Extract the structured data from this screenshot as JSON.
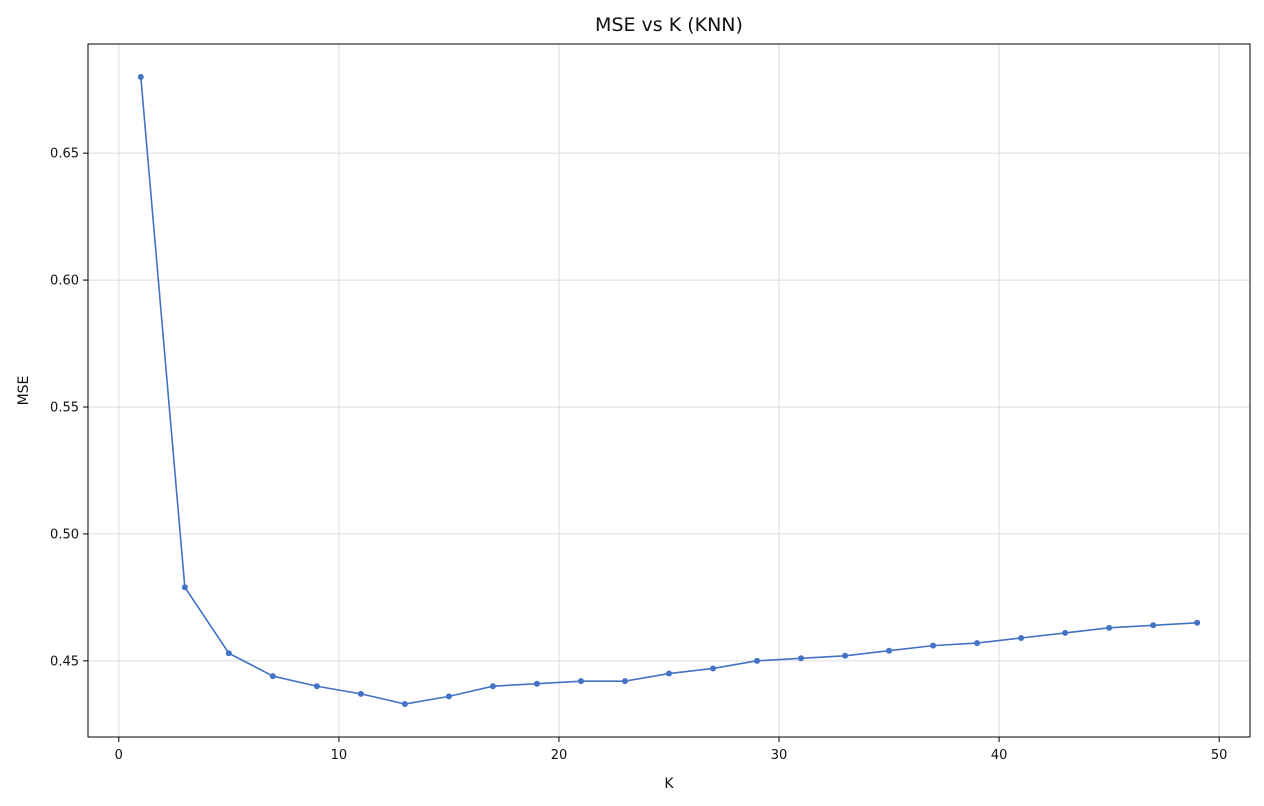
{
  "chart_data": {
    "type": "line",
    "title": "MSE vs K (KNN)",
    "xlabel": "K",
    "ylabel": "MSE",
    "xlim": [
      -1.4,
      51.4
    ],
    "ylim": [
      0.42,
      0.693
    ],
    "xticks": [
      0,
      10,
      20,
      30,
      40,
      50
    ],
    "yticks": [
      0.45,
      0.5,
      0.55,
      0.6,
      0.65
    ],
    "ytick_labels": [
      "0.45",
      "0.50",
      "0.55",
      "0.60",
      "0.65"
    ],
    "grid": true,
    "series": [
      {
        "color": "#4472c4",
        "marker": "circle",
        "x": [
          1,
          3,
          5,
          7,
          9,
          11,
          13,
          15,
          17,
          19,
          21,
          23,
          25,
          27,
          29,
          31,
          33,
          35,
          37,
          39,
          41,
          43,
          45,
          47,
          49
        ],
        "y": [
          0.68,
          0.479,
          0.453,
          0.444,
          0.44,
          0.437,
          0.433,
          0.436,
          0.44,
          0.441,
          0.442,
          0.442,
          0.445,
          0.447,
          0.45,
          0.451,
          0.452,
          0.454,
          0.456,
          0.457,
          0.459,
          0.461,
          0.463,
          0.464,
          0.465
        ]
      }
    ]
  }
}
